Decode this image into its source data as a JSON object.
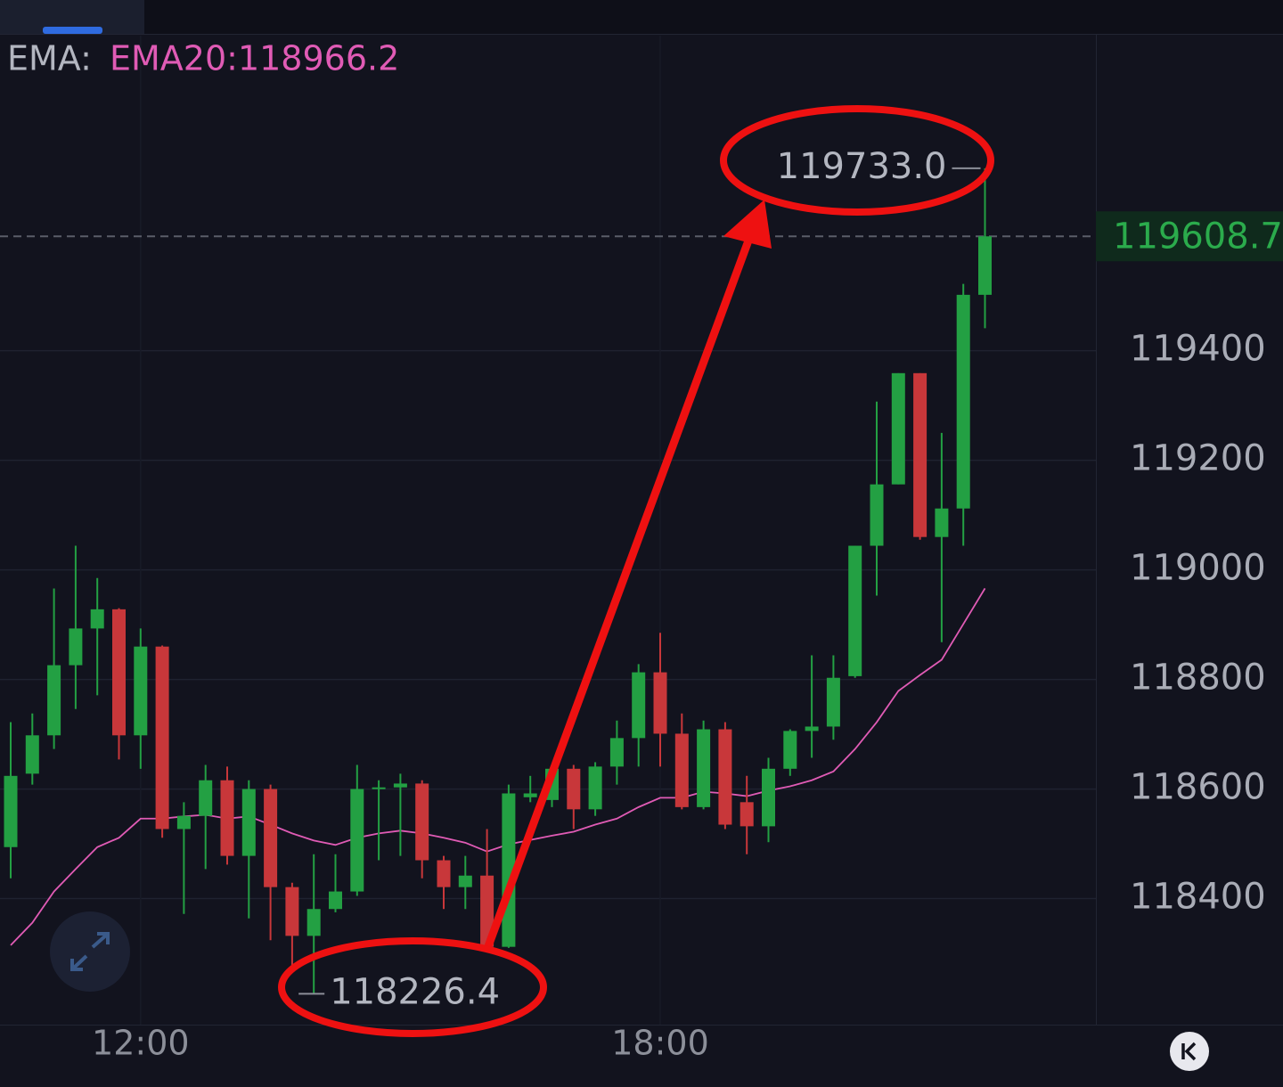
{
  "chart_data": {
    "type": "candlestick",
    "legend_prefix": "EMA:",
    "ema_label": "EMA20:118966.2",
    "categories": [
      null,
      null,
      null,
      null,
      null,
      null,
      "12:00",
      null,
      null,
      null,
      null,
      null,
      null,
      null,
      null,
      null,
      null,
      null,
      null,
      null,
      null,
      null,
      null,
      null,
      null,
      null,
      null,
      null,
      null,
      null,
      "18:00",
      null,
      null,
      null,
      null,
      null,
      null,
      null,
      null,
      null,
      null,
      null,
      null,
      null,
      null,
      null
    ],
    "open": [
      118494,
      118628,
      118698,
      118826,
      118893,
      118928,
      118698,
      118860,
      118527,
      118551,
      118616,
      118478,
      118600,
      118421,
      118332,
      118381,
      118413,
      118600,
      118603,
      118610,
      118470,
      118421,
      118442,
      118312,
      118585,
      118580,
      118637,
      118563,
      118641,
      118693,
      118813,
      118701,
      118567,
      118709,
      118576,
      118532,
      118637,
      118706,
      118714,
      118806,
      119044,
      119156,
      119359,
      119060,
      119112,
      119502
    ],
    "high": [
      118722,
      118738,
      118966,
      119044,
      118985,
      118930,
      118893,
      118862,
      118576,
      118644,
      118641,
      118616,
      118608,
      118429,
      118481,
      118481,
      118644,
      118616,
      118628,
      118616,
      118478,
      118478,
      118527,
      118608,
      118624,
      118641,
      118644,
      118649,
      118725,
      118828,
      118885,
      118738,
      118725,
      118722,
      118624,
      118657,
      118709,
      118844,
      118844,
      119044,
      119307,
      119359,
      119359,
      119250,
      119522,
      119733.0
    ],
    "low": [
      118437,
      118608,
      118673,
      118746,
      118771,
      118654,
      118637,
      118511,
      118372,
      118454,
      118462,
      118364,
      118324,
      118275,
      118226.4,
      118375,
      118405,
      118470,
      118478,
      118437,
      118381,
      118381,
      118310,
      118310,
      118576,
      118567,
      118527,
      118551,
      118608,
      118641,
      118641,
      118563,
      118563,
      118527,
      118481,
      118503,
      118624,
      118657,
      118690,
      118803,
      118953,
      119156,
      119055,
      118868,
      119044,
      119441
    ],
    "close": [
      118624,
      118698,
      118826,
      118893,
      118928,
      118698,
      118860,
      118527,
      118551,
      118616,
      118478,
      118600,
      118421,
      118332,
      118381,
      118413,
      118600,
      118603,
      118610,
      118470,
      118421,
      118442,
      118312,
      118592,
      118592,
      118637,
      118563,
      118641,
      118693,
      118813,
      118701,
      118567,
      118709,
      118535,
      118532,
      118637,
      118706,
      118714,
      118803,
      119044,
      119156,
      119359,
      119060,
      119112,
      119502,
      119608.7
    ],
    "up_color": "#23a043",
    "down_color": "#c8373a",
    "series": [
      {
        "name": "EMA20",
        "color": "#e05bb5",
        "values": [
          118315,
          118356,
          118413,
          118454,
          118494,
          118511,
          118546,
          118546,
          118550,
          118553,
          118546,
          118550,
          118535,
          118519,
          118506,
          118498,
          118511,
          118519,
          118524,
          118519,
          118511,
          118502,
          118486,
          118499,
          118507,
          118515,
          118522,
          118535,
          118546,
          118567,
          118584,
          118584,
          118595,
          118592,
          118587,
          118597,
          118605,
          118616,
          118632,
          118673,
          118722,
          118779,
          118808,
          118836,
          118901,
          118966.2
        ]
      }
    ],
    "annotations": [
      {
        "value": 119733.0,
        "label": "119733.0"
      },
      {
        "value": 118226.4,
        "label": "118226.4"
      }
    ],
    "last_price": {
      "value": 119608.7,
      "label": "119608.7"
    },
    "ylim": [
      118170,
      119975
    ],
    "yticks": [
      118400,
      118600,
      118800,
      119000,
      119200,
      119400
    ],
    "grid": true
  }
}
